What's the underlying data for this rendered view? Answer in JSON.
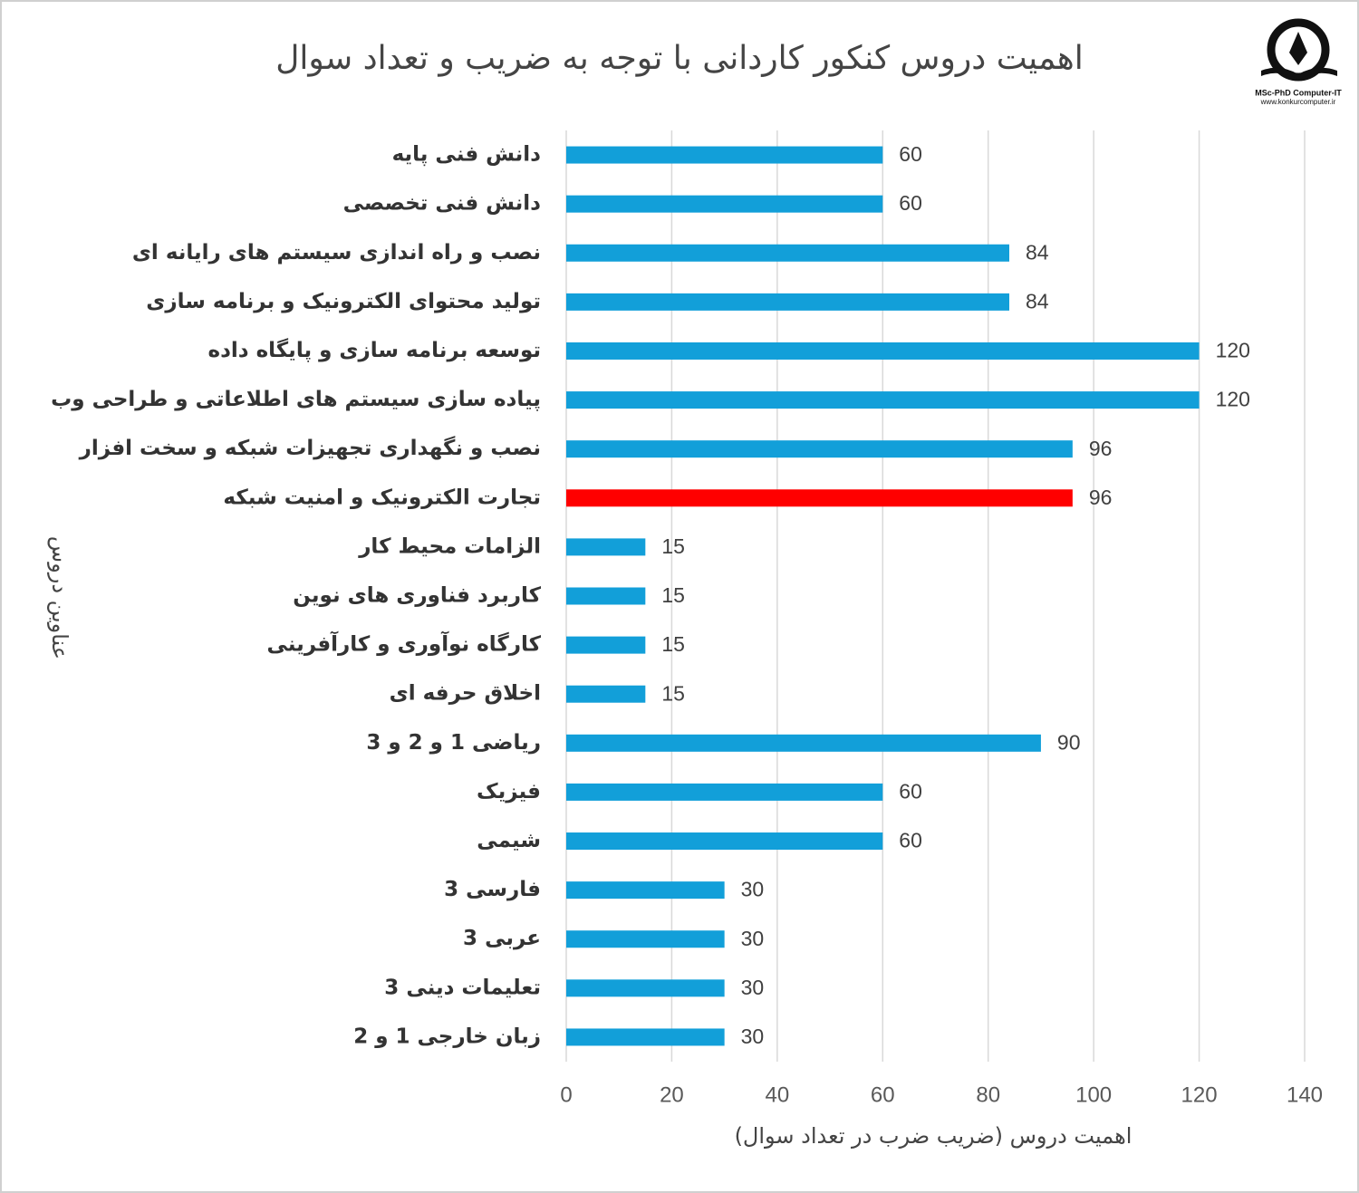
{
  "chart_data": {
    "type": "bar",
    "orientation": "horizontal",
    "title": "اهمیت دروس کنکور کاردانی با توجه به ضریب و تعداد سوال",
    "x_label": "اهمیت دروس (ضریب ضرب در تعداد سوال)",
    "y_label": "عناوین دروس",
    "categories": [
      "دانش فنی پایه",
      "دانش فنی تخصصی",
      "نصب و راه اندازی سیستم های رایانه ای",
      "تولید محتوای الکترونیک و برنامه سازی",
      "توسعه برنامه سازی و پایگاه داده",
      "پیاده سازی سیستم های اطلاعاتی و طراحی وب",
      "نصب و نگهداری تجهیزات شبکه و سخت افزار",
      "تجارت الکترونیک و امنیت شبکه",
      "الزامات محیط کار",
      "کاربرد فناوری های نوین",
      "کارگاه نوآوری و کارآفرینی",
      "اخلاق حرفه ای",
      "ریاضی 1 و 2 و 3",
      "فیزیک",
      "شیمی",
      "فارسی 3",
      "عربی 3",
      "تعلیمات دینی 3",
      "زبان خارجی 1 و 2"
    ],
    "values": [
      60,
      60,
      84,
      84,
      120,
      120,
      96,
      96,
      15,
      15,
      15,
      15,
      90,
      60,
      60,
      30,
      30,
      30,
      30
    ],
    "colors": [
      "#129fd9",
      "#129fd9",
      "#129fd9",
      "#129fd9",
      "#129fd9",
      "#129fd9",
      "#129fd9",
      "#ff0000",
      "#129fd9",
      "#129fd9",
      "#129fd9",
      "#129fd9",
      "#129fd9",
      "#129fd9",
      "#129fd9",
      "#129fd9",
      "#129fd9",
      "#129fd9",
      "#129fd9"
    ],
    "xlim": [
      0,
      140
    ],
    "xticks": [
      0,
      20,
      40,
      60,
      80,
      100,
      120,
      140
    ],
    "grid": true
  },
  "logo": {
    "title": "MSc-PhD Computer-IT",
    "url": "www.konkurcomputer.ir"
  }
}
